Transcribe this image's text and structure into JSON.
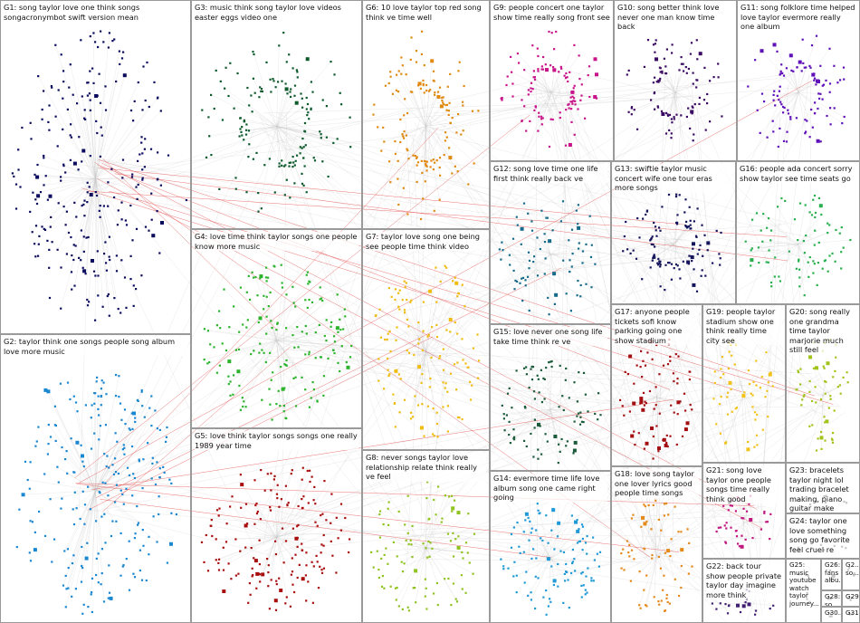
{
  "groups": [
    {
      "id": "G1",
      "label": "G1: song taylor love one think songs songacronymbot swift version mean",
      "color": "#0b0b5e",
      "count": 260
    },
    {
      "id": "G2",
      "label": "G2: taylor think one songs people song album love more music",
      "color": "#1a87d1",
      "count": 240
    },
    {
      "id": "G3",
      "label": "G3: music think song taylor love videos easter eggs video one",
      "color": "#0d5a2c",
      "count": 150
    },
    {
      "id": "G4",
      "label": "G4: love time think taylor songs one people know more music",
      "color": "#2bb32b",
      "count": 170
    },
    {
      "id": "G5",
      "label": "G5: love think taylor songs songs one really 1989 year time",
      "color": "#a80e0e",
      "count": 170
    },
    {
      "id": "G6",
      "label": "G6: 10 love taylor top red song think ve time well",
      "color": "#e08a12",
      "count": 140
    },
    {
      "id": "G7",
      "label": "G7: taylor love song one being see people time think video",
      "color": "#efbc10",
      "count": 130
    },
    {
      "id": "G8",
      "label": "G8: never songs taylor love relationship relate think really ve feel",
      "color": "#8fc31f",
      "count": 100
    },
    {
      "id": "G9",
      "label": "G9: people concert one taylor show time really song front see",
      "color": "#c9138a",
      "count": 110
    },
    {
      "id": "G10",
      "label": "G10: song better think love never one man know time back",
      "color": "#3a0a63",
      "count": 100
    },
    {
      "id": "G11",
      "label": "G11: song folklore time helped love taylor evermore really one album",
      "color": "#5f10b8",
      "count": 100
    },
    {
      "id": "G12",
      "label": "G12: song love time one life first think really back ve",
      "color": "#176b8a",
      "count": 80
    },
    {
      "id": "G13",
      "label": "G13: swiftie taylor music concert wife one tour eras more songs",
      "color": "#14145c",
      "count": 110
    },
    {
      "id": "G14",
      "label": "G14: evermore time life love album song one came right going",
      "color": "#1f9ad6",
      "count": 110
    },
    {
      "id": "G15",
      "label": "G15: love never one song life take time think re ve",
      "color": "#1b5b3b",
      "count": 90
    },
    {
      "id": "G16",
      "label": "G16: people ada concert sorry show taylor see time seats go",
      "color": "#27b04d",
      "count": 80
    },
    {
      "id": "G17",
      "label": "G17: anyone people tickets sofi know parking going one show stadium",
      "color": "#a30f12",
      "count": 80
    },
    {
      "id": "G18",
      "label": "G18: love song taylor one lover lyrics good people time songs",
      "color": "#e5891a",
      "count": 70
    },
    {
      "id": "G19",
      "label": "G19: people taylor stadium show one think really time city see",
      "color": "#f2c21a",
      "count": 60
    },
    {
      "id": "G20",
      "label": "G20: song really one grandma time taylor marjorie much still feel",
      "color": "#a2c31a",
      "count": 60
    },
    {
      "id": "G21",
      "label": "G21: song love taylor one people songs time really think good",
      "color": "#c0167f",
      "count": 40
    },
    {
      "id": "G22",
      "label": "G22: back tour show people private taylor day imagine more think",
      "color": "#402070",
      "count": 20
    },
    {
      "id": "G23",
      "label": "G23: bracelets taylor night lol trading bracelet making, piano guitar make",
      "color": "#333333",
      "count": 10
    },
    {
      "id": "G24",
      "label": "G24: taylor one love something song go favorite feel cruel re",
      "color": "#333333",
      "count": 8
    },
    {
      "id": "G25",
      "label": "G25: music youtube watch taylor journey...",
      "color": "#333333",
      "count": 6
    },
    {
      "id": "G26",
      "label": "G26: fans albu...",
      "color": "#333333",
      "count": 4
    },
    {
      "id": "G27",
      "label": "G2... so...",
      "color": "#333333",
      "count": 4
    },
    {
      "id": "G28",
      "label": "G28: so...",
      "color": "#333333",
      "count": 3
    },
    {
      "id": "G29",
      "label": "G29",
      "color": "#333333",
      "count": 3
    },
    {
      "id": "G30",
      "label": "G30...",
      "color": "#333333",
      "count": 3
    },
    {
      "id": "G31",
      "label": "G31...",
      "color": "#333333",
      "count": 3
    }
  ],
  "edge_colors": {
    "intergroup": "#e23a3a",
    "background": "#c8c8c8"
  }
}
